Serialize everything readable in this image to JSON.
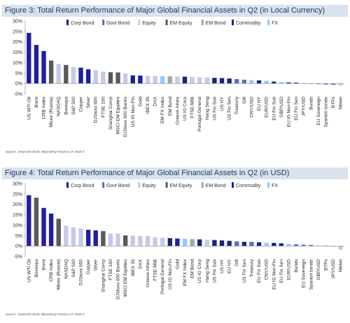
{
  "colors": {
    "Corp Bond": "#1a237e",
    "Govt Bond": "#5c6bc0",
    "Equity": "#c5cae9",
    "EM Equity": "#595959",
    "EM Bond": "#a6a6a6",
    "Commodity": "#1f1f9f",
    "FX": "#90caf9"
  },
  "figures": [
    {
      "title": "Figure 3: Total Return Performance of Major Global Financial Assets in Q2 (in Local Currency)",
      "source": "Source : Deutsche Bank, Bloomberg Finance LP, Mark-It"
    },
    {
      "title": "Figure 4: Total Return Performance of Major Global Financial Assets in Q2 (in USD)",
      "source": "Source : Deutsche Bank, Bloomberg Finance LP, Mark-It"
    }
  ],
  "chart_data": [
    {
      "type": "bar",
      "title": "Figure 3: Total Return Performance of Major Global Financial Assets in Q2 (in Local Currency)",
      "ylim": [
        -5,
        30
      ],
      "yticks": [
        "30%",
        "25%",
        "20%",
        "15%",
        "10%",
        "5%",
        "0%",
        "-5%"
      ],
      "legend": [
        "Corp Bond",
        "Govt Bond",
        "Equity",
        "EM Equity",
        "EM Bond",
        "Commodity",
        "FX"
      ],
      "legend_position": "top",
      "categories": [
        "US WTI Oil",
        "Brent",
        "CRB Index",
        "Micex (Russia)",
        "NASDAQ",
        "Bovespa",
        "S&P 500",
        "Copper",
        "Silver",
        "DJStoxx 600",
        "FTSE 100",
        "Shanghai Comp",
        "MSCI EM Equities",
        "DJStoxx 600 Banks",
        "US IG Non-Fin",
        "Gold",
        "IBEX 35",
        "DAX",
        "EM FX Index",
        "EM Bond",
        "Greece Athex",
        "US IG Corp",
        "FTSE-MIB",
        "Portugal General",
        "Hang Seng",
        "US Fin Sub",
        "US HY",
        "US Fin Sen",
        "Treasury",
        "Gilt",
        "CNY/USD",
        "EU HY",
        "EUR/USD",
        "EU Fin Sub",
        "GBP/USD",
        "EU IG Non-Fin",
        "EU Fin Sen",
        "JPY/USD",
        "Bunds",
        "EU Sovereign",
        "Spanish bonds",
        "BTPs",
        "Nikkei"
      ],
      "groups": [
        "Commodity",
        "Commodity",
        "Commodity",
        "EM Equity",
        "Equity",
        "EM Equity",
        "Equity",
        "Commodity",
        "Commodity",
        "Equity",
        "Equity",
        "EM Equity",
        "EM Equity",
        "Equity",
        "Corp Bond",
        "Commodity",
        "Equity",
        "Equity",
        "FX",
        "EM Bond",
        "Equity",
        "Corp Bond",
        "Equity",
        "Equity",
        "Equity",
        "Corp Bond",
        "Corp Bond",
        "Corp Bond",
        "Govt Bond",
        "Govt Bond",
        "FX",
        "Corp Bond",
        "FX",
        "Corp Bond",
        "FX",
        "Corp Bond",
        "Corp Bond",
        "FX",
        "Govt Bond",
        "Govt Bond",
        "Govt Bond",
        "Govt Bond",
        "Equity"
      ],
      "values": [
        24.3,
        18.5,
        15.6,
        11.0,
        9.4,
        8.9,
        7.8,
        7.6,
        6.8,
        6.4,
        5.7,
        5.4,
        5.3,
        4.8,
        3.9,
        3.8,
        3.7,
        3.6,
        3.5,
        3.5,
        3.4,
        3.3,
        3.2,
        3.0,
        2.9,
        2.7,
        2.6,
        2.4,
        2.1,
        1.8,
        1.6,
        1.5,
        1.3,
        0.9,
        0.7,
        0.5,
        0.4,
        0.3,
        -0.2,
        -0.3,
        -0.5,
        -0.6,
        -1.0
      ]
    },
    {
      "type": "bar",
      "title": "Figure 4: Total Return Performance of Major Global Financial Assets in Q2 (in USD)",
      "ylim": [
        -5,
        30
      ],
      "yticks": [
        "30%",
        "25%",
        "20%",
        "15%",
        "10%",
        "5%",
        "0%",
        "-5%"
      ],
      "legend": [
        "Corp Bond",
        "Govt Bond",
        "Equity",
        "EM Equity",
        "EM Bond",
        "Commodity",
        "FX"
      ],
      "legend_position": "top",
      "categories": [
        "US WTI Oil",
        "Bovespa",
        "Brent",
        "CRB Index",
        "Micex (Russia)",
        "NASDAQ",
        "S&P 500",
        "DJStoxx 600",
        "Copper",
        "Silver",
        "Shanghai Comp",
        "FTSE 100",
        "DJStoxx 600 Banks",
        "MSCI EM Equities",
        "IBEX 35",
        "DAX",
        "Greece Athex",
        "FTSE-MIB",
        "Portugal General",
        "US IG Non-Fin",
        "Gold",
        "EM FX Index",
        "EM Bond",
        "US IG Corp",
        "Hang Seng",
        "US Fin Sub",
        "US HY",
        "EU HY",
        "Gilt",
        "US Fin Sen",
        "Treasury",
        "EU Fin Sub",
        "CNY/USD",
        "EU IG Non-Fin",
        "EU Fin Sen",
        "EUR/USD",
        "Bunds",
        "EU Sovereign",
        "Spanish bonds",
        "GBP/USD",
        "BTPs",
        "JPY/USD",
        "Nikkei"
      ],
      "groups": [
        "Commodity",
        "EM Equity",
        "Commodity",
        "Commodity",
        "EM Equity",
        "Equity",
        "Equity",
        "Equity",
        "Commodity",
        "Commodity",
        "EM Equity",
        "Equity",
        "Equity",
        "EM Equity",
        "Equity",
        "Equity",
        "Equity",
        "Equity",
        "Equity",
        "Corp Bond",
        "Commodity",
        "FX",
        "EM Bond",
        "Corp Bond",
        "Equity",
        "Corp Bond",
        "Corp Bond",
        "Corp Bond",
        "Govt Bond",
        "Corp Bond",
        "Govt Bond",
        "Corp Bond",
        "FX",
        "Corp Bond",
        "Corp Bond",
        "FX",
        "Govt Bond",
        "Govt Bond",
        "Govt Bond",
        "FX",
        "Govt Bond",
        "FX",
        "Equity"
      ],
      "values": [
        24.4,
        23.2,
        18.3,
        15.6,
        13.1,
        9.8,
        9.0,
        8.5,
        7.8,
        7.5,
        7.2,
        6.0,
        6.0,
        5.1,
        5.0,
        4.9,
        4.8,
        4.2,
        4.0,
        3.8,
        3.6,
        3.5,
        3.3,
        3.2,
        3.0,
        2.9,
        2.7,
        2.5,
        2.2,
        2.0,
        2.0,
        1.8,
        1.6,
        1.5,
        1.3,
        1.0,
        0.8,
        0.6,
        0.5,
        0.3,
        0.2,
        -0.3,
        -1.8
      ]
    }
  ]
}
